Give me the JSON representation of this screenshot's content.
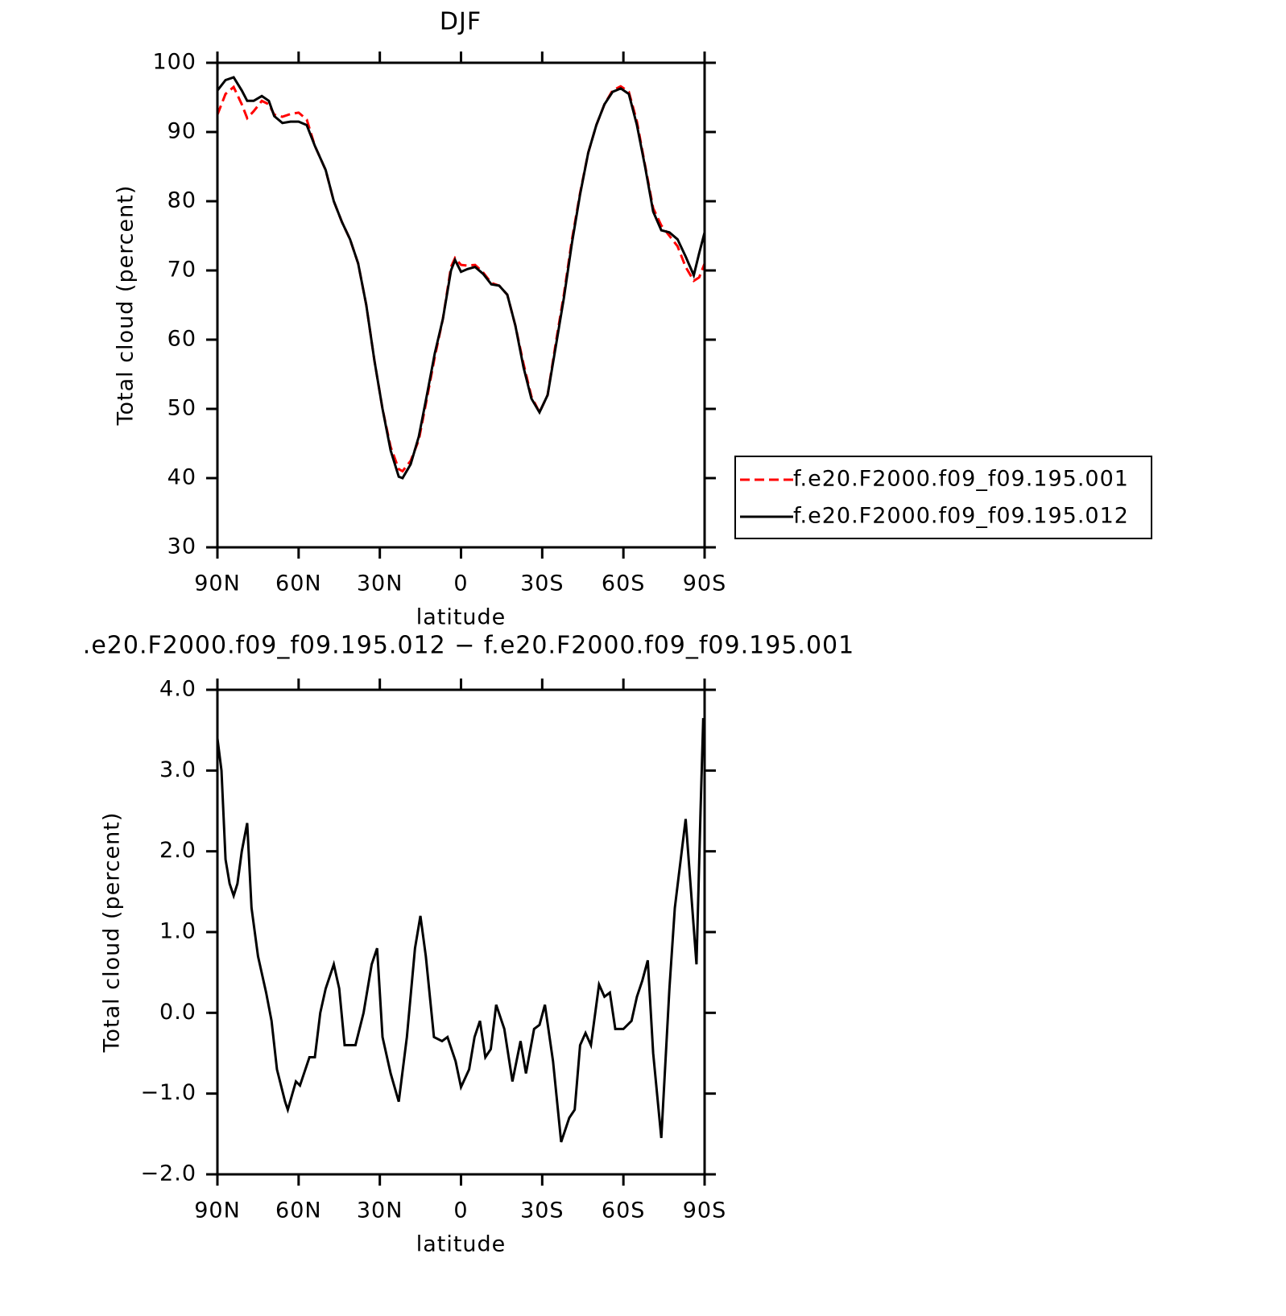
{
  "chart_data": [
    {
      "type": "line",
      "title": "DJF",
      "xlabel": "latitude",
      "ylabel": "Total cloud (percent)",
      "xlim": [
        90,
        -90
      ],
      "xticks": [
        {
          "value": 90,
          "label": "90N"
        },
        {
          "value": 60,
          "label": "60N"
        },
        {
          "value": 30,
          "label": "30N"
        },
        0,
        {
          "value": -30,
          "label": "30S"
        },
        {
          "value": -60,
          "label": "60S"
        },
        {
          "value": -90,
          "label": "90S"
        }
      ],
      "ylim": [
        30,
        100
      ],
      "yticks": [
        30,
        40,
        50,
        60,
        70,
        80,
        90,
        100
      ],
      "legend": "right",
      "x": [
        90,
        87,
        84,
        81,
        79,
        76.6,
        73.6,
        71,
        69,
        66,
        63,
        60,
        57,
        54,
        50,
        47,
        44,
        41,
        38,
        35,
        32,
        29,
        26,
        23,
        21.6,
        18.6,
        15.6,
        12.6,
        9.7,
        6.7,
        3.7,
        2.2,
        0,
        -2.4,
        -5.2,
        -8.2,
        -11.2,
        -14.1,
        -17.1,
        -20.1,
        -23.1,
        -26,
        -29,
        -32,
        -35,
        -38,
        -41,
        -44,
        -47,
        -50,
        -53,
        -56,
        -59,
        -62,
        -65,
        -68,
        -71,
        -74,
        -77,
        -80,
        -83,
        -86,
        -88,
        -90
      ],
      "series": [
        {
          "name": "f.e20.F2000.f09_f09.195.001",
          "color": "#ff0000",
          "linestyle": "dashed",
          "values": [
            92.5,
            95.5,
            96.5,
            94,
            92,
            93,
            94.5,
            94,
            92.5,
            92.2,
            92.6,
            92.8,
            91.8,
            88,
            84.5,
            80,
            77,
            74.5,
            71,
            65,
            57,
            50,
            44.5,
            41.3,
            41,
            42.5,
            45.5,
            51.5,
            57.5,
            63,
            70.5,
            71.8,
            70.8,
            70.7,
            70.8,
            69.7,
            68.2,
            67.8,
            66.5,
            62,
            56.5,
            51.8,
            49.5,
            52,
            59.5,
            66.5,
            74.5,
            81.2,
            87,
            91,
            94,
            96,
            96.6,
            95.8,
            91.5,
            85.2,
            79,
            76.5,
            75,
            73.5,
            70.5,
            68.5,
            69,
            71
          ]
        },
        {
          "name": "f.e20.F2000.f09_f09.195.012",
          "color": "#000000",
          "linestyle": "solid",
          "values": [
            96,
            97.5,
            97.9,
            96,
            94.5,
            94.5,
            95.2,
            94.5,
            92.3,
            91.3,
            91.5,
            91.5,
            91,
            88,
            84.5,
            80,
            77,
            74.5,
            71,
            65,
            57,
            50,
            44,
            40.2,
            40,
            42,
            46,
            52,
            58,
            63,
            70,
            71.5,
            69.8,
            70.2,
            70.5,
            69.5,
            68,
            67.8,
            66.5,
            62,
            56,
            51.5,
            49.5,
            52,
            59,
            66,
            74,
            81,
            87,
            91,
            94,
            95.8,
            96.3,
            95.5,
            91,
            85,
            78.5,
            75.8,
            75.5,
            74.5,
            72,
            69.3,
            72.5,
            75.5
          ]
        }
      ]
    },
    {
      "type": "line",
      "title": ".e20.F2000.f09_f09.195.012 − f.e20.F2000.f09_f09.195.001",
      "xlabel": "latitude",
      "ylabel": "Total cloud (percent)",
      "xlim": [
        90,
        -90
      ],
      "xticks": [
        {
          "value": 90,
          "label": "90N"
        },
        {
          "value": 60,
          "label": "60N"
        },
        {
          "value": 30,
          "label": "30N"
        },
        0,
        {
          "value": -30,
          "label": "30S"
        },
        {
          "value": -60,
          "label": "60S"
        },
        {
          "value": -90,
          "label": "90S"
        }
      ],
      "ylim": [
        -2,
        4
      ],
      "yticks": [
        {
          "value": -2,
          "label": "−2.0"
        },
        {
          "value": -1,
          "label": "−1.0"
        },
        {
          "value": 0,
          "label": "0.0"
        },
        {
          "value": 1,
          "label": "1.0"
        },
        {
          "value": 2,
          "label": "2.0"
        },
        {
          "value": 3,
          "label": "3.0"
        },
        {
          "value": 4,
          "label": "4.0"
        }
      ],
      "x": [
        90,
        88.5,
        87,
        85.5,
        84,
        82.6,
        81,
        79,
        77.4,
        75,
        72,
        70,
        68,
        65,
        64,
        61,
        59.5,
        56,
        54,
        52,
        50,
        47,
        45,
        43,
        39,
        36,
        33,
        31,
        29,
        26,
        23,
        20,
        17,
        15,
        13,
        10,
        7,
        5,
        2,
        0,
        -3,
        -5,
        -7,
        -9,
        -11,
        -13,
        -16,
        -19,
        -22,
        -24,
        -27,
        -29,
        -31,
        -34,
        -37,
        -40,
        -42,
        -44,
        -46,
        -48,
        -51,
        -53,
        -55,
        -57,
        -60,
        -63,
        -65,
        -67,
        -69,
        -71,
        -73,
        -74,
        -77,
        -79,
        -83,
        -85,
        -87,
        -88.5,
        -89.5,
        -90
      ],
      "series": [
        {
          "color": "#000000",
          "linestyle": "solid",
          "values": [
            3.4,
            3.0,
            1.9,
            1.6,
            1.45,
            1.6,
            2.0,
            2.35,
            1.3,
            0.7,
            0.25,
            -0.1,
            -0.7,
            -1.1,
            -1.2,
            -0.85,
            -0.9,
            -0.55,
            -0.55,
            0,
            0.3,
            0.6,
            0.3,
            -0.4,
            -0.4,
            0,
            0.6,
            0.8,
            -0.3,
            -0.75,
            -1.1,
            -0.3,
            0.8,
            1.2,
            0.7,
            -0.3,
            -0.35,
            -0.3,
            -0.6,
            -0.92,
            -0.7,
            -0.3,
            -0.1,
            -0.55,
            -0.45,
            0.1,
            -0.2,
            -0.85,
            -0.35,
            -0.75,
            -0.2,
            -0.15,
            0.1,
            -0.6,
            -1.6,
            -1.3,
            -1.2,
            -0.4,
            -0.25,
            -0.4,
            0.35,
            0.2,
            0.25,
            -0.2,
            -0.2,
            -0.1,
            0.2,
            0.4,
            0.65,
            -0.5,
            -1.2,
            -1.55,
            0.3,
            1.3,
            2.4,
            1.5,
            0.6,
            2.5,
            3.65,
            3.2
          ]
        }
      ]
    }
  ]
}
